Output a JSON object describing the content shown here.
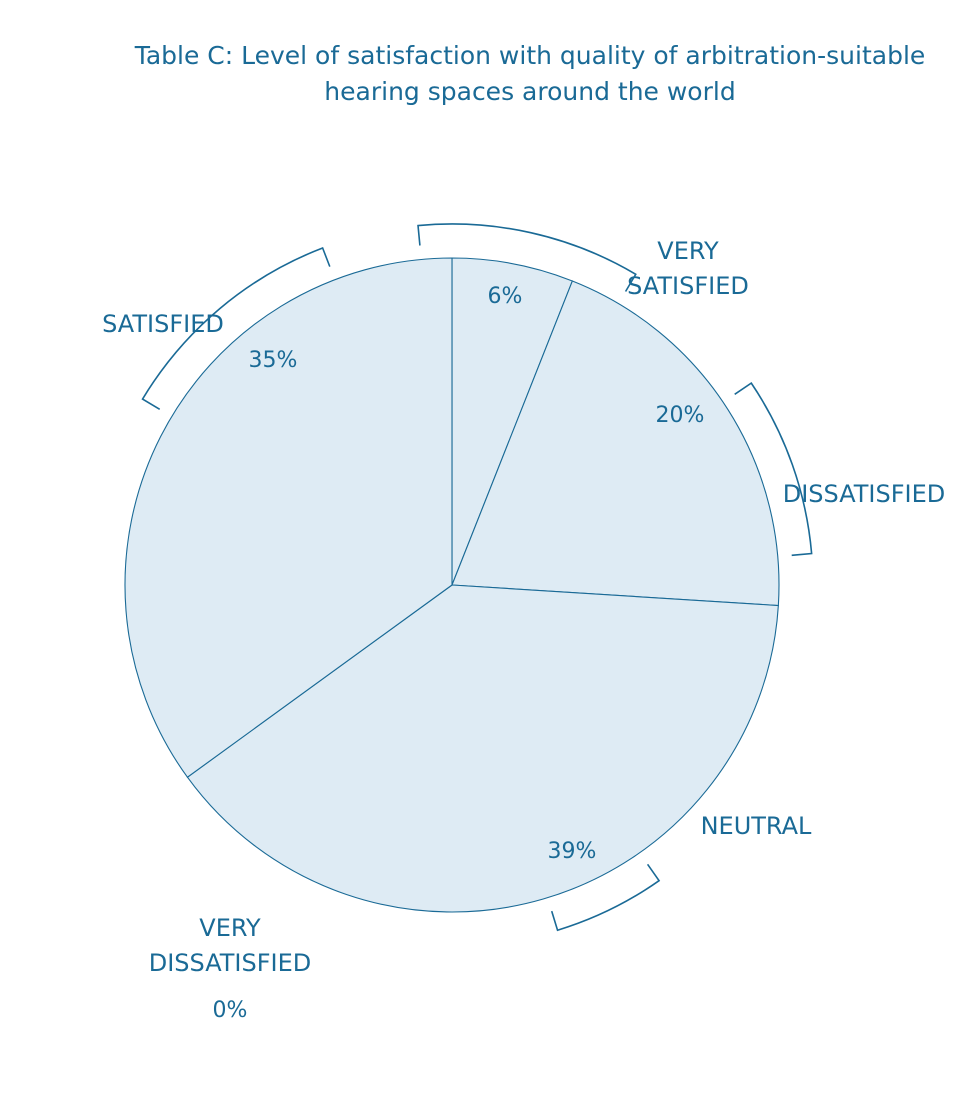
{
  "chart_data": {
    "type": "pie",
    "title": "Table C: Level of satisfaction with quality of arbitration-suitable hearing spaces around the world",
    "slices": [
      {
        "label_lines": [
          "VERY",
          "SATISFIED"
        ],
        "value": 6,
        "value_label": "6%"
      },
      {
        "label_lines": [
          "DISSATISFIED"
        ],
        "value": 20,
        "value_label": "20%"
      },
      {
        "label_lines": [
          "NEUTRAL"
        ],
        "value": 39,
        "value_label": "39%"
      },
      {
        "label_lines": [
          "VERY",
          "DISSATISFIED"
        ],
        "value": 0,
        "value_label": "0%"
      },
      {
        "label_lines": [
          "SATISFIED"
        ],
        "value": 35,
        "value_label": "35%"
      }
    ]
  },
  "colors": {
    "slice_fill": "#deebf4",
    "outline": "#1a6a96",
    "text": "#1a6a96"
  }
}
